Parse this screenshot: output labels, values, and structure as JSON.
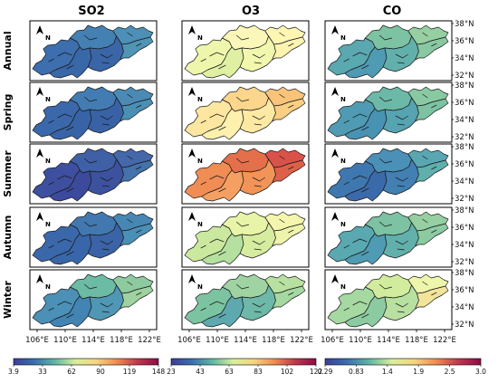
{
  "columns": [
    "SO2",
    "O3",
    "CO"
  ],
  "rows": [
    "Annual",
    "Spring",
    "Summer",
    "Autumn",
    "Winter"
  ],
  "x_ticks": [
    "106°E",
    "110°E",
    "114°E",
    "118°E",
    "122°E"
  ],
  "y_ticks": [
    "38°N",
    "36°N",
    "34°N",
    "32°N"
  ],
  "north_arrow": "N",
  "colorbars": [
    {
      "variable": "SO2",
      "ticks": [
        "3.9",
        "33",
        "62",
        "90",
        "119",
        "148"
      ],
      "colormap": [
        "#3b3f98",
        "#3a6fb0",
        "#5fb8a4",
        "#d9ef9a",
        "#f7d57e",
        "#f08b4f",
        "#c4354e",
        "#8b0d47"
      ]
    },
    {
      "variable": "O3",
      "ticks": [
        "23",
        "43",
        "63",
        "83",
        "102",
        "122"
      ],
      "colormap": [
        "#3b3f98",
        "#3a6fb0",
        "#5fb8a4",
        "#d9ef9a",
        "#f7d57e",
        "#f08b4f",
        "#c4354e",
        "#8b0d47"
      ]
    },
    {
      "variable": "CO",
      "ticks": [
        "0.29",
        "0.83",
        "1.4",
        "1.9",
        "2.5",
        "3.0"
      ],
      "colormap": [
        "#3b3f98",
        "#3a6fb0",
        "#5fb8a4",
        "#d9ef9a",
        "#f7d57e",
        "#f08b4f",
        "#c4354e",
        "#8b0d47"
      ]
    }
  ],
  "panel_colors": {
    "SO2": {
      "Annual": [
        "#3d6ead",
        "#4580b3",
        "#3968a9",
        "#4d8fb6",
        "#3a66a8",
        "#4f95b5"
      ],
      "Spring": [
        "#3b68aa",
        "#437cb2",
        "#3864a7",
        "#4a8ab5",
        "#3962a6",
        "#4a90b4"
      ],
      "Summer": [
        "#3e4f9f",
        "#4060a5",
        "#3b4a9c",
        "#4468a9",
        "#3c529f",
        "#4472ab"
      ],
      "Autumn": [
        "#3b68aa",
        "#4278b0",
        "#3866a8",
        "#4886b4",
        "#3a64a7",
        "#4a8fb5"
      ],
      "Winter": [
        "#4b90b6",
        "#6cbba4",
        "#4284b4",
        "#8dcaa0",
        "#4f97b5",
        "#9ed2a0"
      ]
    },
    "O3": {
      "Annual": [
        "#eef6ac",
        "#fbf7b8",
        "#dff0a2",
        "#fff6b4",
        "#f2f7ae",
        "#fdf4b0"
      ],
      "Spring": [
        "#fde6a0",
        "#fcd68c",
        "#fef1ae",
        "#f9c479",
        "#fde9a4",
        "#fbcf83"
      ],
      "Summer": [
        "#f08d55",
        "#e46f4b",
        "#f5a062",
        "#d9524a",
        "#f29458",
        "#de6048"
      ],
      "Autumn": [
        "#cbe99e",
        "#e8f4a7",
        "#b5e0a0",
        "#f4f6ae",
        "#d6ec9f",
        "#eef5aa"
      ],
      "Winter": [
        "#7cc3a2",
        "#9fd4a2",
        "#5ea9b0",
        "#b8e0a0",
        "#6db8a8",
        "#a6d8a1"
      ]
    },
    "CO": {
      "Annual": [
        "#5aa8b0",
        "#7cc2a3",
        "#4f9bb3",
        "#96cfa1",
        "#62b0ac",
        "#88c9a2"
      ],
      "Spring": [
        "#4f9bb3",
        "#6cb9a7",
        "#4892b4",
        "#88c9a2",
        "#56a3b1",
        "#7cc2a3"
      ],
      "Summer": [
        "#3f78b0",
        "#4b90b6",
        "#3b6aaa",
        "#5aa6b2",
        "#427fb2",
        "#5fb0ad"
      ],
      "Autumn": [
        "#5aa8b0",
        "#7cc2a3",
        "#4f9bb3",
        "#96cfa1",
        "#62b0ac",
        "#8ccba2"
      ],
      "Winter": [
        "#a6d8a1",
        "#d2ec9e",
        "#8ccba2",
        "#eef6ac",
        "#b8e0a0",
        "#f2e49a"
      ]
    }
  }
}
